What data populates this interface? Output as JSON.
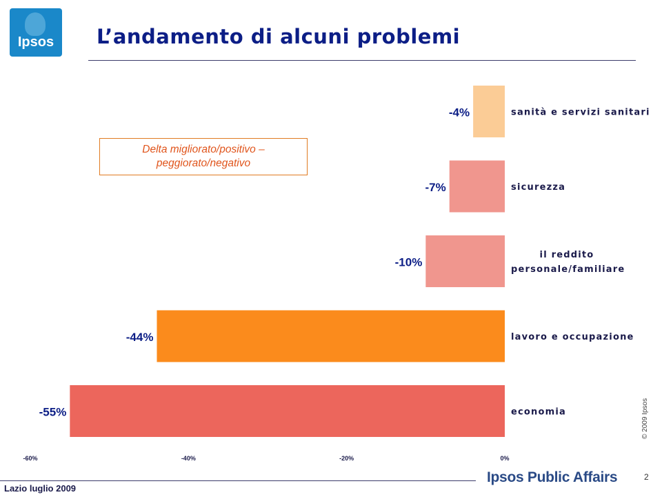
{
  "logo": {
    "text": "Ipsos"
  },
  "slide": {
    "title": "L’andamento di alcuni problemi"
  },
  "note": {
    "line1": "Delta migliorato/positivo –",
    "line2": "peggiorato/negativo"
  },
  "chart_data": {
    "type": "bar",
    "orientation": "horizontal",
    "categories": [
      "sanità e servizi sanitari",
      "sicurezza",
      "il reddito personale/familiare",
      "lavoro e occupazione",
      "economia"
    ],
    "category_lines": [
      [
        "sanità e servizi sanitari"
      ],
      [
        "sicurezza"
      ],
      [
        "il reddito",
        "personale/familiare"
      ],
      [
        "lavoro e occupazione"
      ],
      [
        "economia"
      ]
    ],
    "values": [
      -4,
      -7,
      -10,
      -44,
      -55
    ],
    "value_labels": [
      "-4%",
      "-7%",
      "-10%",
      "-44%",
      "-55%"
    ],
    "bar_colors": [
      "#fbcc96",
      "#f0968e",
      "#f0968e",
      "#fb8b1c",
      "#ec665c"
    ],
    "xlim": [
      -60,
      0
    ],
    "ticks": [
      -60,
      -40,
      -20,
      0
    ],
    "tick_labels": [
      "-60%",
      "-40%",
      "-20%",
      "0%"
    ],
    "grid": false,
    "legend": "none"
  },
  "copyright": "© 2009 Ipsos",
  "footer": {
    "left": "Lazio luglio 2009",
    "brand": "Ipsos Public Affairs",
    "page_number": "2"
  }
}
